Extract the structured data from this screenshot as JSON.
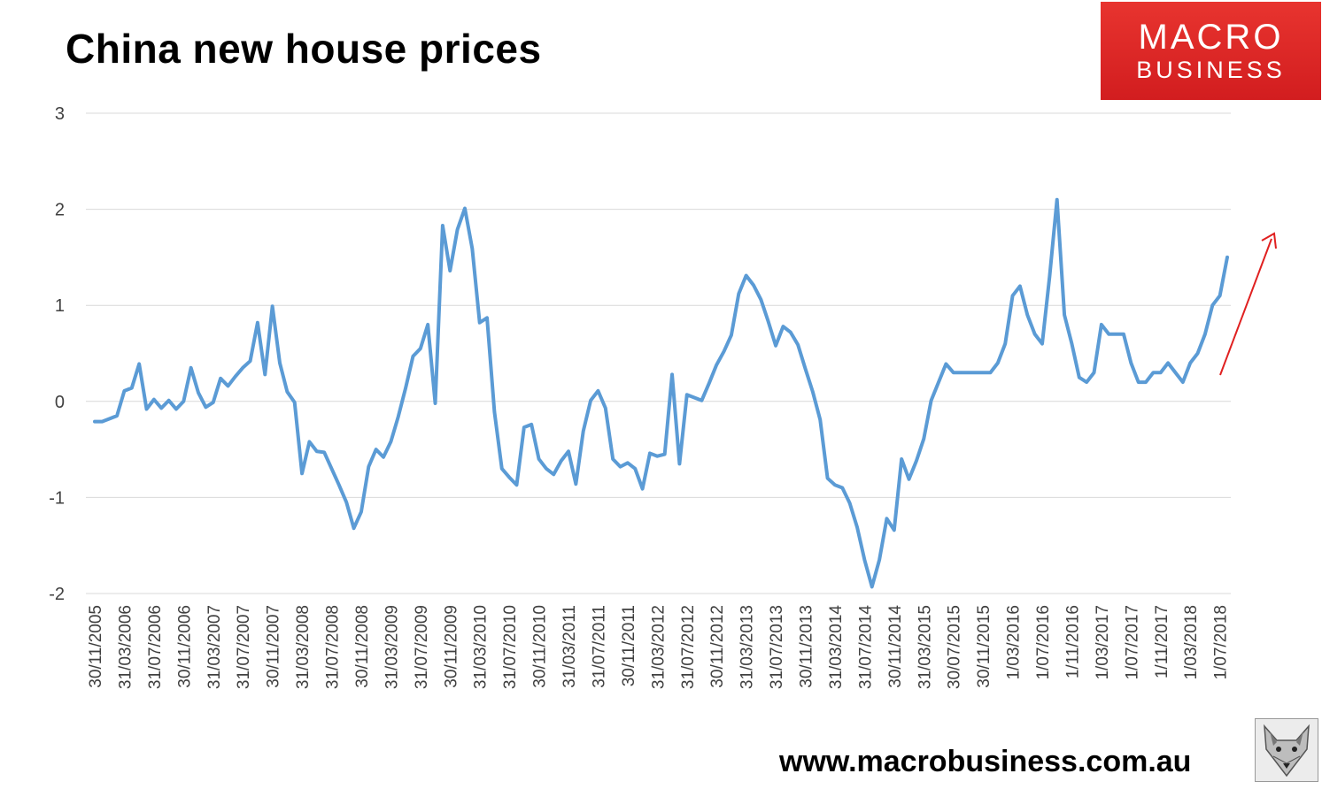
{
  "title": "China new house prices",
  "logo": {
    "line1": "MACRO",
    "line2": "BUSINESS",
    "color": "#d9262a"
  },
  "footer": {
    "url": "www.macrobusiness.com.au"
  },
  "icons": {
    "mascot": "fox-icon",
    "trend": "trend-arrow-icon"
  },
  "chart_data": {
    "type": "line",
    "title": "China new house prices",
    "xlabel": "",
    "ylabel": "",
    "ylim": [
      -2,
      3
    ],
    "yticks": [
      -2,
      -1,
      0,
      1,
      2,
      3
    ],
    "grid": true,
    "legend": "none",
    "line_color": "#5b9bd5",
    "annotation_color": "#e02020",
    "xtick_labels": [
      "30/11/2005",
      "31/03/2006",
      "31/07/2006",
      "30/11/2006",
      "31/03/2007",
      "31/07/2007",
      "30/11/2007",
      "31/03/2008",
      "31/07/2008",
      "30/11/2008",
      "31/03/2009",
      "31/07/2009",
      "30/11/2009",
      "31/03/2010",
      "31/07/2010",
      "30/11/2010",
      "31/03/2011",
      "31/07/2011",
      "30/11/2011",
      "31/03/2012",
      "31/07/2012",
      "30/11/2012",
      "31/03/2013",
      "31/07/2013",
      "30/11/2013",
      "31/03/2014",
      "31/07/2014",
      "30/11/2014",
      "31/03/2015",
      "30/07/2015",
      "30/11/2015",
      "1/03/2016",
      "1/07/2016",
      "1/11/2016",
      "1/03/2017",
      "1/07/2017",
      "1/11/2017",
      "1/03/2018",
      "1/07/2018"
    ],
    "series": [
      {
        "values": [
          -0.21,
          -0.21,
          -0.18,
          -0.15,
          0.11,
          0.14,
          0.39,
          -0.08,
          0.02,
          -0.07,
          0.01,
          -0.08,
          0.0,
          0.35,
          0.09,
          -0.06,
          -0.01,
          0.24,
          0.16,
          0.26,
          0.35,
          0.42,
          0.82,
          0.28,
          0.99,
          0.4,
          0.1,
          -0.01,
          -0.75,
          -0.42,
          -0.52,
          -0.53,
          -0.7,
          -0.87,
          -1.05,
          -1.32,
          -1.15,
          -0.68,
          -0.5,
          -0.58,
          -0.42,
          -0.16,
          0.14,
          0.47,
          0.55,
          0.8,
          -0.02,
          1.83,
          1.36,
          1.79,
          2.01,
          1.59,
          0.82,
          0.87,
          -0.11,
          -0.7,
          -0.79,
          -0.87,
          -0.27,
          -0.24,
          -0.6,
          -0.7,
          -0.76,
          -0.62,
          -0.52,
          -0.86,
          -0.31,
          0.01,
          0.11,
          -0.07,
          -0.6,
          -0.68,
          -0.64,
          -0.7,
          -0.91,
          -0.54,
          -0.57,
          -0.55,
          0.28,
          -0.65,
          0.07,
          0.04,
          0.01,
          0.19,
          0.38,
          0.52,
          0.69,
          1.12,
          1.31,
          1.21,
          1.06,
          0.83,
          0.58,
          0.78,
          0.72,
          0.59,
          0.34,
          0.1,
          -0.19,
          -0.8,
          -0.87,
          -0.9,
          -1.06,
          -1.31,
          -1.65,
          -1.93,
          -1.65,
          -1.22,
          -1.34,
          -0.6,
          -0.81,
          -0.62,
          -0.39,
          0.01,
          0.2,
          0.39,
          0.3,
          0.3,
          0.3,
          0.3,
          0.3,
          0.3,
          0.4,
          0.6,
          1.1,
          1.2,
          0.9,
          0.7,
          0.6,
          1.3,
          2.1,
          0.9,
          0.6,
          0.25,
          0.2,
          0.3,
          0.8,
          0.7,
          0.7,
          0.7,
          0.4,
          0.2,
          0.2,
          0.3,
          0.3,
          0.4,
          0.3,
          0.2,
          0.4,
          0.5,
          0.7,
          1.0,
          1.1,
          1.5
        ]
      }
    ]
  }
}
